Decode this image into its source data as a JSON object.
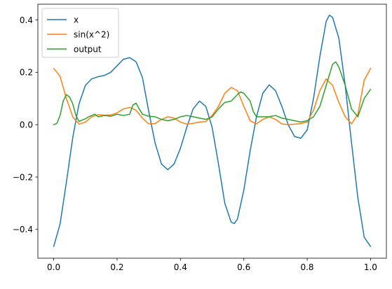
{
  "chart_data": {
    "type": "line",
    "title": "",
    "xlabel": "",
    "ylabel": "",
    "xlim": [
      -0.05,
      1.05
    ],
    "ylim": [
      -0.51,
      0.46
    ],
    "grid": false,
    "legend_placement": "top-left",
    "x_ticks": [
      {
        "value": 0.0,
        "label": "0.0"
      },
      {
        "value": 0.2,
        "label": "0.2"
      },
      {
        "value": 0.4,
        "label": "0.4"
      },
      {
        "value": 0.6,
        "label": "0.6"
      },
      {
        "value": 0.8,
        "label": "0.8"
      },
      {
        "value": 1.0,
        "label": "1.0"
      }
    ],
    "y_ticks": [
      {
        "value": -0.4,
        "label": "−0.4"
      },
      {
        "value": -0.2,
        "label": "−0.2"
      },
      {
        "value": 0.0,
        "label": "0.0"
      },
      {
        "value": 0.2,
        "label": "0.2"
      },
      {
        "value": 0.4,
        "label": "0.4"
      }
    ],
    "series": [
      {
        "name": "x",
        "color": "#1f77b4",
        "points": [
          [
            0.0,
            -0.465
          ],
          [
            0.02,
            -0.38
          ],
          [
            0.04,
            -0.22
          ],
          [
            0.06,
            -0.05
          ],
          [
            0.08,
            0.08
          ],
          [
            0.1,
            0.15
          ],
          [
            0.12,
            0.175
          ],
          [
            0.14,
            0.183
          ],
          [
            0.16,
            0.188
          ],
          [
            0.18,
            0.2
          ],
          [
            0.2,
            0.225
          ],
          [
            0.22,
            0.25
          ],
          [
            0.24,
            0.256
          ],
          [
            0.26,
            0.24
          ],
          [
            0.28,
            0.18
          ],
          [
            0.3,
            0.05
          ],
          [
            0.32,
            -0.07
          ],
          [
            0.34,
            -0.15
          ],
          [
            0.36,
            -0.172
          ],
          [
            0.38,
            -0.15
          ],
          [
            0.4,
            -0.09
          ],
          [
            0.42,
            -0.01
          ],
          [
            0.44,
            0.06
          ],
          [
            0.46,
            0.09
          ],
          [
            0.48,
            0.07
          ],
          [
            0.5,
            -0.01
          ],
          [
            0.52,
            -0.15
          ],
          [
            0.54,
            -0.3
          ],
          [
            0.56,
            -0.372
          ],
          [
            0.57,
            -0.378
          ],
          [
            0.58,
            -0.36
          ],
          [
            0.6,
            -0.25
          ],
          [
            0.62,
            -0.1
          ],
          [
            0.64,
            0.03
          ],
          [
            0.66,
            0.12
          ],
          [
            0.68,
            0.152
          ],
          [
            0.7,
            0.13
          ],
          [
            0.72,
            0.07
          ],
          [
            0.74,
            0.0
          ],
          [
            0.76,
            -0.045
          ],
          [
            0.78,
            -0.052
          ],
          [
            0.8,
            -0.02
          ],
          [
            0.82,
            0.1
          ],
          [
            0.84,
            0.26
          ],
          [
            0.86,
            0.395
          ],
          [
            0.87,
            0.418
          ],
          [
            0.88,
            0.41
          ],
          [
            0.9,
            0.33
          ],
          [
            0.92,
            0.15
          ],
          [
            0.94,
            -0.07
          ],
          [
            0.96,
            -0.28
          ],
          [
            0.98,
            -0.43
          ],
          [
            1.0,
            -0.465
          ]
        ]
      },
      {
        "name": "sin(x^2)",
        "color": "#ff7f0e",
        "points": [
          [
            0.0,
            0.215
          ],
          [
            0.02,
            0.185
          ],
          [
            0.04,
            0.1
          ],
          [
            0.06,
            0.03
          ],
          [
            0.08,
            0.002
          ],
          [
            0.1,
            0.01
          ],
          [
            0.12,
            0.03
          ],
          [
            0.14,
            0.038
          ],
          [
            0.16,
            0.036
          ],
          [
            0.18,
            0.037
          ],
          [
            0.2,
            0.045
          ],
          [
            0.22,
            0.06
          ],
          [
            0.24,
            0.066
          ],
          [
            0.26,
            0.055
          ],
          [
            0.28,
            0.025
          ],
          [
            0.3,
            0.003
          ],
          [
            0.32,
            0.004
          ],
          [
            0.34,
            0.02
          ],
          [
            0.36,
            0.03
          ],
          [
            0.38,
            0.025
          ],
          [
            0.4,
            0.01
          ],
          [
            0.42,
            0.002
          ],
          [
            0.44,
            0.005
          ],
          [
            0.46,
            0.01
          ],
          [
            0.48,
            0.012
          ],
          [
            0.5,
            0.035
          ],
          [
            0.52,
            0.07
          ],
          [
            0.54,
            0.12
          ],
          [
            0.56,
            0.142
          ],
          [
            0.58,
            0.13
          ],
          [
            0.6,
            0.07
          ],
          [
            0.62,
            0.015
          ],
          [
            0.64,
            0.003
          ],
          [
            0.66,
            0.02
          ],
          [
            0.68,
            0.03
          ],
          [
            0.7,
            0.02
          ],
          [
            0.72,
            0.003
          ],
          [
            0.74,
            0.0
          ],
          [
            0.76,
            0.002
          ],
          [
            0.78,
            0.004
          ],
          [
            0.8,
            0.01
          ],
          [
            0.82,
            0.055
          ],
          [
            0.84,
            0.13
          ],
          [
            0.86,
            0.175
          ],
          [
            0.88,
            0.15
          ],
          [
            0.9,
            0.085
          ],
          [
            0.92,
            0.03
          ],
          [
            0.94,
            0.003
          ],
          [
            0.96,
            0.04
          ],
          [
            0.98,
            0.17
          ],
          [
            1.0,
            0.215
          ]
        ]
      },
      {
        "name": "output",
        "color": "#2ca02c",
        "points": [
          [
            0.0,
            0.0
          ],
          [
            0.01,
            0.005
          ],
          [
            0.02,
            0.035
          ],
          [
            0.03,
            0.09
          ],
          [
            0.04,
            0.115
          ],
          [
            0.05,
            0.105
          ],
          [
            0.06,
            0.08
          ],
          [
            0.07,
            0.035
          ],
          [
            0.08,
            0.012
          ],
          [
            0.09,
            0.018
          ],
          [
            0.1,
            0.022
          ],
          [
            0.11,
            0.03
          ],
          [
            0.12,
            0.035
          ],
          [
            0.13,
            0.04
          ],
          [
            0.14,
            0.03
          ],
          [
            0.16,
            0.035
          ],
          [
            0.18,
            0.032
          ],
          [
            0.2,
            0.04
          ],
          [
            0.22,
            0.035
          ],
          [
            0.24,
            0.04
          ],
          [
            0.25,
            0.075
          ],
          [
            0.26,
            0.082
          ],
          [
            0.27,
            0.06
          ],
          [
            0.28,
            0.04
          ],
          [
            0.3,
            0.032
          ],
          [
            0.32,
            0.03
          ],
          [
            0.34,
            0.02
          ],
          [
            0.36,
            0.015
          ],
          [
            0.38,
            0.02
          ],
          [
            0.4,
            0.03
          ],
          [
            0.42,
            0.035
          ],
          [
            0.44,
            0.03
          ],
          [
            0.46,
            0.025
          ],
          [
            0.48,
            0.02
          ],
          [
            0.5,
            0.03
          ],
          [
            0.52,
            0.06
          ],
          [
            0.54,
            0.085
          ],
          [
            0.56,
            0.09
          ],
          [
            0.58,
            0.115
          ],
          [
            0.59,
            0.125
          ],
          [
            0.6,
            0.12
          ],
          [
            0.62,
            0.09
          ],
          [
            0.63,
            0.05
          ],
          [
            0.64,
            0.03
          ],
          [
            0.66,
            0.03
          ],
          [
            0.68,
            0.03
          ],
          [
            0.7,
            0.035
          ],
          [
            0.72,
            0.025
          ],
          [
            0.74,
            0.02
          ],
          [
            0.76,
            0.015
          ],
          [
            0.78,
            0.01
          ],
          [
            0.8,
            0.015
          ],
          [
            0.82,
            0.03
          ],
          [
            0.84,
            0.07
          ],
          [
            0.86,
            0.15
          ],
          [
            0.88,
            0.23
          ],
          [
            0.89,
            0.24
          ],
          [
            0.9,
            0.22
          ],
          [
            0.92,
            0.15
          ],
          [
            0.94,
            0.06
          ],
          [
            0.96,
            0.03
          ],
          [
            0.98,
            0.1
          ],
          [
            1.0,
            0.135
          ]
        ]
      }
    ]
  }
}
